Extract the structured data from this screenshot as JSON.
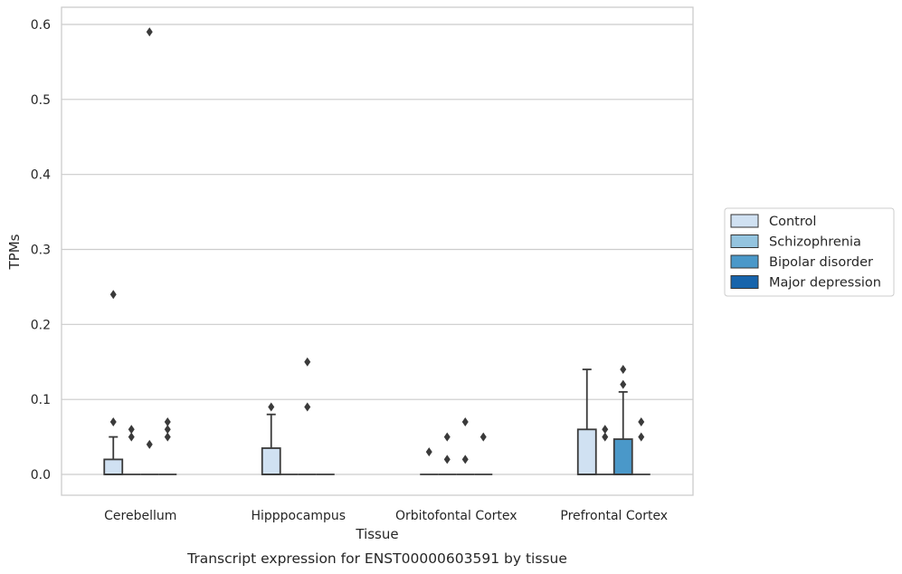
{
  "chart_data": {
    "type": "boxplot",
    "title": "",
    "caption": "Transcript expression for ENST00000603591 by tissue",
    "xlabel": "Tissue",
    "ylabel": "TPMs",
    "ylim": [
      -0.029,
      0.62
    ],
    "yticks": [
      0.0,
      0.1,
      0.2,
      0.3,
      0.4,
      0.5,
      0.6
    ],
    "ytick_labels": [
      "0.0",
      "0.1",
      "0.2",
      "0.3",
      "0.4",
      "0.5",
      "0.6"
    ],
    "grid": true,
    "legend_position": "right",
    "categories": [
      "Cerebellum",
      "Hipppocampus",
      "Orbitofontal Cortex",
      "Prefrontal Cortex"
    ],
    "series": [
      {
        "name": "Control",
        "color": "#d0e1f2"
      },
      {
        "name": "Schizophrenia",
        "color": "#94c4df"
      },
      {
        "name": "Bipolar disorder",
        "color": "#4a98c9"
      },
      {
        "name": "Major depression",
        "color": "#1764ab"
      }
    ],
    "boxes": [
      {
        "category": "Cerebellum",
        "series": "Control",
        "q1": 0.0,
        "median": 0.0,
        "q3": 0.02,
        "whisker_low": 0.0,
        "whisker_high": 0.05,
        "outliers": [
          0.07,
          0.24
        ]
      },
      {
        "category": "Cerebellum",
        "series": "Schizophrenia",
        "q1": 0.0,
        "median": 0.0,
        "q3": 0.0,
        "whisker_low": 0.0,
        "whisker_high": 0.0,
        "outliers": [
          0.05,
          0.06
        ]
      },
      {
        "category": "Cerebellum",
        "series": "Bipolar disorder",
        "q1": 0.0,
        "median": 0.0,
        "q3": 0.0,
        "whisker_low": 0.0,
        "whisker_high": 0.0,
        "outliers": [
          0.04,
          0.59
        ]
      },
      {
        "category": "Cerebellum",
        "series": "Major depression",
        "q1": 0.0,
        "median": 0.0,
        "q3": 0.0,
        "whisker_low": 0.0,
        "whisker_high": 0.0,
        "outliers": [
          0.05,
          0.06,
          0.07
        ]
      },
      {
        "category": "Hipppocampus",
        "series": "Control",
        "q1": 0.0,
        "median": 0.0,
        "q3": 0.035,
        "whisker_low": 0.0,
        "whisker_high": 0.08,
        "outliers": [
          0.09
        ]
      },
      {
        "category": "Hipppocampus",
        "series": "Schizophrenia",
        "q1": 0.0,
        "median": 0.0,
        "q3": 0.0,
        "whisker_low": 0.0,
        "whisker_high": 0.0,
        "outliers": []
      },
      {
        "category": "Hipppocampus",
        "series": "Bipolar disorder",
        "q1": 0.0,
        "median": 0.0,
        "q3": 0.0,
        "whisker_low": 0.0,
        "whisker_high": 0.0,
        "outliers": [
          0.09,
          0.15
        ]
      },
      {
        "category": "Hipppocampus",
        "series": "Major depression",
        "q1": 0.0,
        "median": 0.0,
        "q3": 0.0,
        "whisker_low": 0.0,
        "whisker_high": 0.0,
        "outliers": []
      },
      {
        "category": "Orbitofontal Cortex",
        "series": "Control",
        "q1": 0.0,
        "median": 0.0,
        "q3": 0.0,
        "whisker_low": 0.0,
        "whisker_high": 0.0,
        "outliers": [
          0.03
        ]
      },
      {
        "category": "Orbitofontal Cortex",
        "series": "Schizophrenia",
        "q1": 0.0,
        "median": 0.0,
        "q3": 0.0,
        "whisker_low": 0.0,
        "whisker_high": 0.0,
        "outliers": [
          0.02,
          0.05
        ]
      },
      {
        "category": "Orbitofontal Cortex",
        "series": "Bipolar disorder",
        "q1": 0.0,
        "median": 0.0,
        "q3": 0.0,
        "whisker_low": 0.0,
        "whisker_high": 0.0,
        "outliers": [
          0.02,
          0.07
        ]
      },
      {
        "category": "Orbitofontal Cortex",
        "series": "Major depression",
        "q1": 0.0,
        "median": 0.0,
        "q3": 0.0,
        "whisker_low": 0.0,
        "whisker_high": 0.0,
        "outliers": [
          0.05
        ]
      },
      {
        "category": "Prefrontal Cortex",
        "series": "Control",
        "q1": 0.0,
        "median": 0.0,
        "q3": 0.06,
        "whisker_low": 0.0,
        "whisker_high": 0.14,
        "outliers": []
      },
      {
        "category": "Prefrontal Cortex",
        "series": "Schizophrenia",
        "q1": 0.0,
        "median": 0.0,
        "q3": 0.0,
        "whisker_low": 0.0,
        "whisker_high": 0.0,
        "outliers": [
          0.05,
          0.06
        ]
      },
      {
        "category": "Prefrontal Cortex",
        "series": "Bipolar disorder",
        "q1": 0.0,
        "median": 0.0,
        "q3": 0.047,
        "whisker_low": 0.0,
        "whisker_high": 0.11,
        "outliers": [
          0.12,
          0.14
        ]
      },
      {
        "category": "Prefrontal Cortex",
        "series": "Major depression",
        "q1": 0.0,
        "median": 0.0,
        "q3": 0.0,
        "whisker_low": 0.0,
        "whisker_high": 0.0,
        "outliers": [
          0.05,
          0.07
        ]
      }
    ]
  }
}
